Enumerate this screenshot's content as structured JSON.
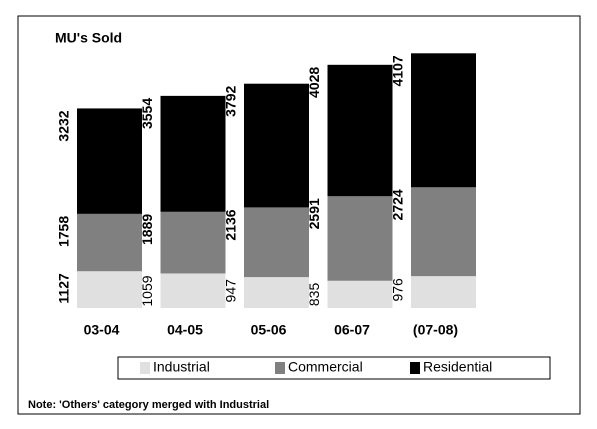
{
  "chart_data": {
    "type": "stacked_bar",
    "title": "MU's Sold",
    "categories": [
      "03-04",
      "04-05",
      "05-06",
      "06-07",
      "(07-08)"
    ],
    "series": [
      {
        "name": "Industrial",
        "color": "#e0e0e0",
        "values": [
          1127,
          1059,
          947,
          835,
          976
        ]
      },
      {
        "name": "Commercial",
        "color": "#808080",
        "values": [
          1758,
          1889,
          2136,
          2591,
          2724
        ]
      },
      {
        "name": "Residential",
        "color": "#000000",
        "values": [
          3232,
          3554,
          3792,
          4028,
          4107
        ]
      }
    ],
    "ylim": [
      0,
      8000
    ],
    "legend": "bottom",
    "note": "Note: 'Others' category merged with Industrial"
  }
}
